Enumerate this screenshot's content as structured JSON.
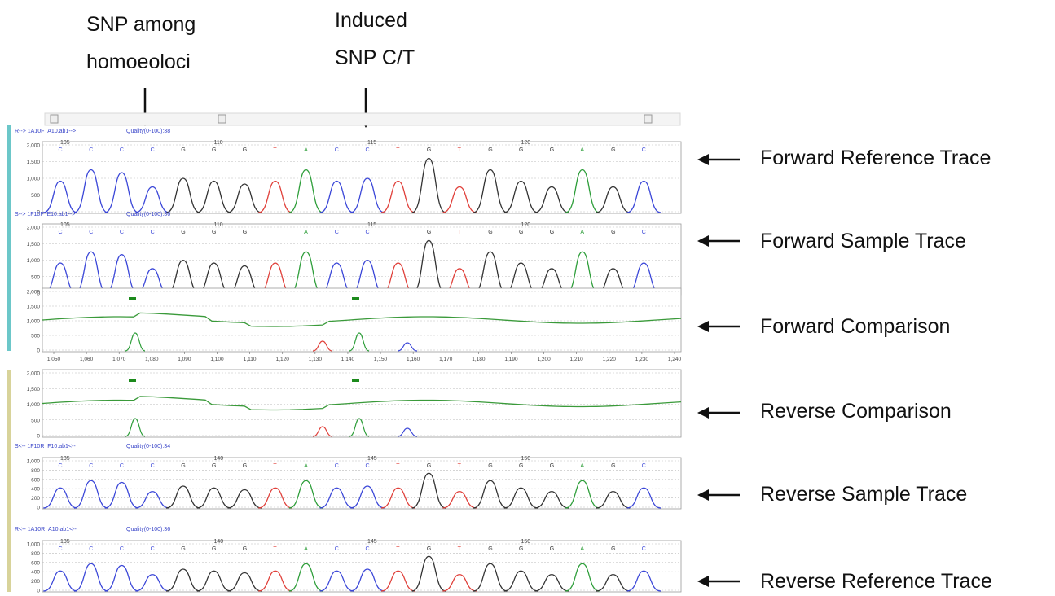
{
  "callouts": {
    "snp_homoeoloci": [
      "SNP among",
      "homoeoloci"
    ],
    "induced_snp": [
      "Induced",
      "SNP C/T"
    ]
  },
  "side_labels": [
    "Forward Reference Trace",
    "Forward Sample Trace",
    "Forward Comparison",
    "Reverse Comparison",
    "Reverse Sample Trace",
    "Reverse Reference Trace"
  ],
  "colors": {
    "forward_bar": "#6cc7c9",
    "reverse_bar": "#d8d39a",
    "base_A": "#2e9e3a",
    "base_C": "#3b47d8",
    "base_G": "#333333",
    "base_T": "#e0403a",
    "comparison": "#3a9a3a",
    "header_blue": "#3a46c9"
  },
  "panels": [
    {
      "key": "fwd_ref",
      "header": "R-->  1A10F_A10.ab1-->",
      "quality": "Quality(0-100):38",
      "yticks": [
        "2,000",
        "1,500",
        "1,000",
        "500",
        "0"
      ],
      "pos_labels": [
        "105",
        "110",
        "115",
        "120"
      ],
      "bases": [
        "C",
        "C",
        "C",
        "C",
        "G",
        "G",
        "G",
        "T",
        "A",
        "C",
        "C",
        "T",
        "G",
        "T",
        "G",
        "G",
        "G",
        "A",
        "G",
        "C"
      ]
    },
    {
      "key": "fwd_sample",
      "header": "S-->  1F10F_E10.ab1-->",
      "quality": "Quality(0-100):36",
      "yticks": [
        "2,000",
        "1,500",
        "1,000",
        "500",
        "0"
      ],
      "pos_labels": [
        "105",
        "110",
        "115",
        "120"
      ],
      "bases": [
        "C",
        "C",
        "C",
        "C",
        "G",
        "G",
        "G",
        "T",
        "A",
        "C",
        "C",
        "T",
        "G",
        "T",
        "G",
        "G",
        "G",
        "A",
        "G",
        "C"
      ]
    },
    {
      "key": "fwd_cmp",
      "yticks": [
        "2,000",
        "1,500",
        "1,000",
        "500",
        "0"
      ],
      "xticks": [
        "1,050",
        "1,060",
        "1,070",
        "1,080",
        "1,090",
        "1,100",
        "1,110",
        "1,120",
        "1,130",
        "1,140",
        "1,150",
        "1,160",
        "1,170",
        "1,180",
        "1,190",
        "1,200",
        "1,210",
        "1,220",
        "1,230",
        "1,240"
      ]
    },
    {
      "key": "rev_cmp",
      "yticks": [
        "2,000",
        "1,500",
        "1,000",
        "500",
        "0"
      ]
    },
    {
      "key": "rev_sample",
      "header": "S<--  1F10R_F10.ab1<--",
      "quality": "Quality(0-100):34",
      "yticks": [
        "1,000",
        "800",
        "600",
        "400",
        "200",
        "0"
      ],
      "pos_labels": [
        "135",
        "140",
        "145",
        "150"
      ],
      "bases": [
        "C",
        "C",
        "C",
        "C",
        "G",
        "G",
        "G",
        "T",
        "A",
        "C",
        "C",
        "T",
        "G",
        "T",
        "G",
        "G",
        "G",
        "A",
        "G",
        "C"
      ]
    },
    {
      "key": "rev_ref",
      "header": "R<--  1A10R_A10.ab1<--",
      "quality": "Quality(0-100):36",
      "yticks": [
        "1,000",
        "800",
        "600",
        "400",
        "200",
        "0"
      ],
      "pos_labels": [
        "135",
        "140",
        "145",
        "150"
      ],
      "bases": [
        "C",
        "C",
        "C",
        "C",
        "G",
        "G",
        "G",
        "T",
        "A",
        "C",
        "C",
        "T",
        "G",
        "T",
        "G",
        "G",
        "G",
        "A",
        "G",
        "C"
      ]
    }
  ]
}
